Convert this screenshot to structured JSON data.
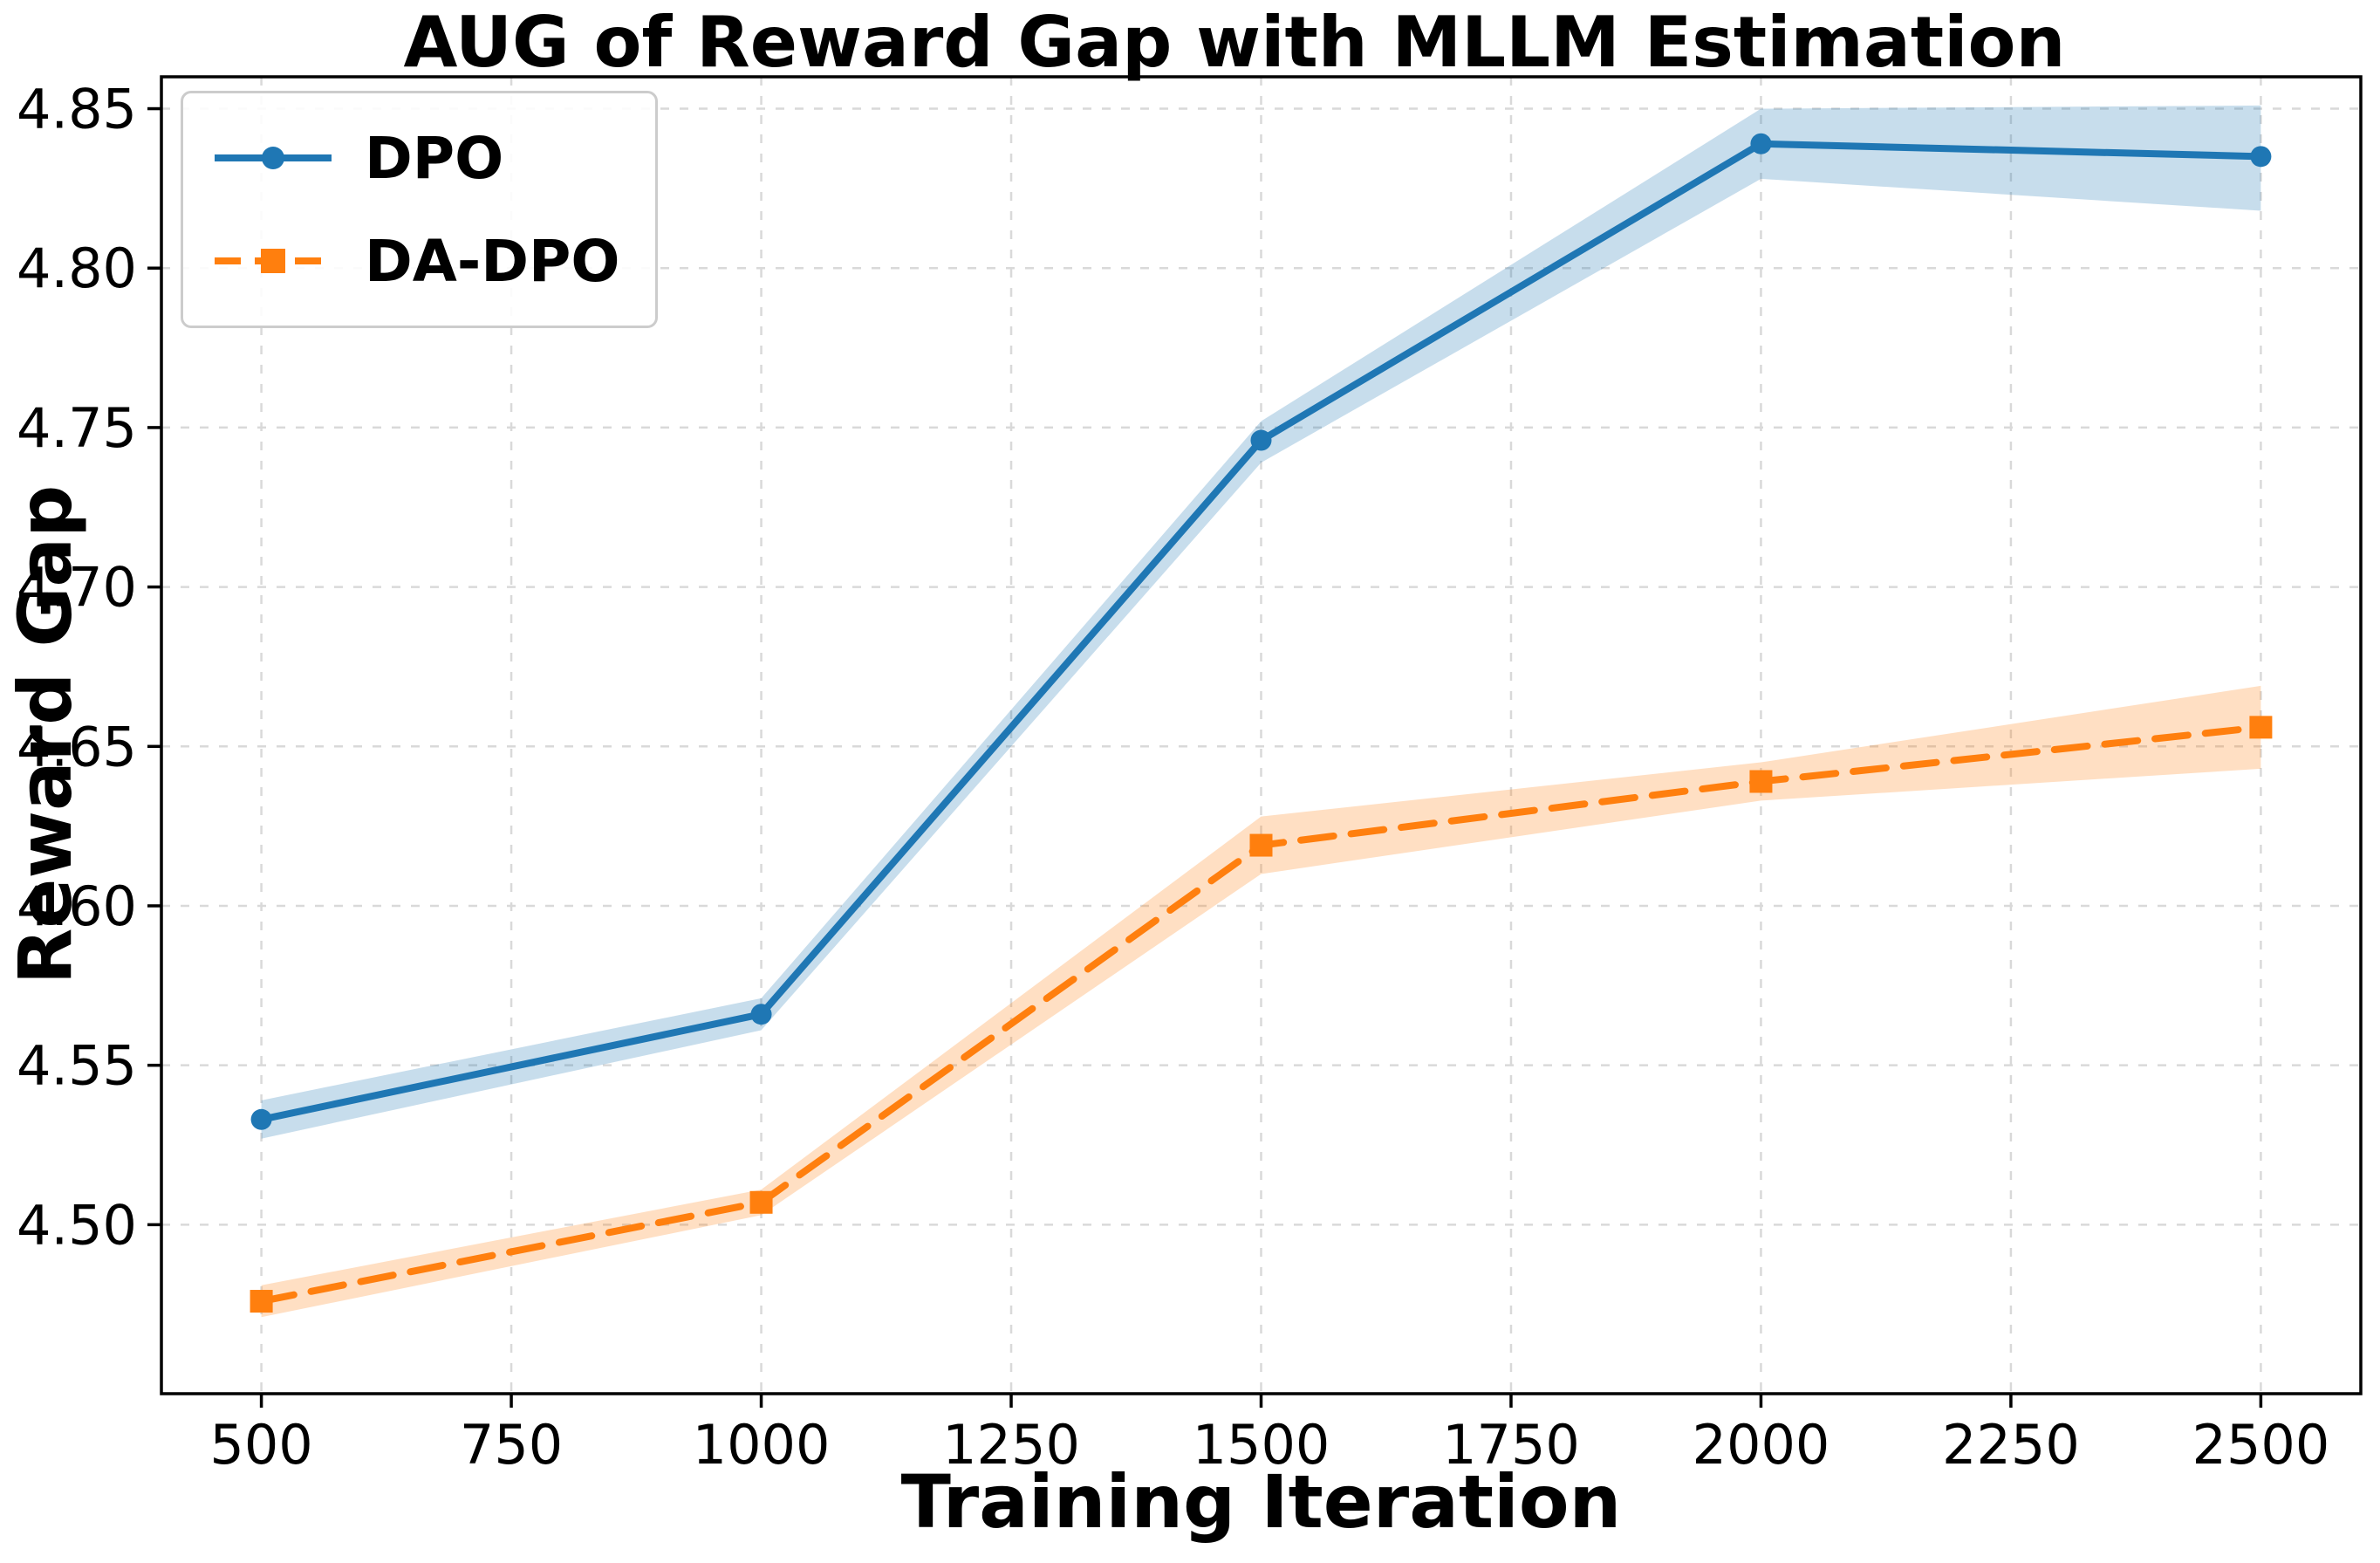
{
  "chart_data": {
    "type": "line",
    "title": "AUG of Reward Gap with MLLM Estimation",
    "xlabel": "Training Iteration",
    "ylabel": "Reward Gap",
    "x": [
      500,
      1000,
      1500,
      2000,
      2500
    ],
    "series": [
      {
        "name": "DPO",
        "color": "#1f77b4",
        "linestyle": "solid",
        "marker": "circle",
        "values": [
          4.533,
          4.566,
          4.746,
          4.839,
          4.835
        ],
        "band_lower": [
          4.527,
          4.561,
          4.739,
          4.828,
          4.818
        ],
        "band_upper": [
          4.539,
          4.571,
          4.752,
          4.85,
          4.851
        ]
      },
      {
        "name": "DA-DPO",
        "color": "#ff7f0e",
        "linestyle": "dashed",
        "marker": "square",
        "values": [
          4.476,
          4.507,
          4.619,
          4.639,
          4.656
        ],
        "band_lower": [
          4.471,
          4.503,
          4.61,
          4.633,
          4.643
        ],
        "band_upper": [
          4.481,
          4.511,
          4.628,
          4.645,
          4.669
        ]
      }
    ],
    "xticks": [
      500,
      750,
      1000,
      1250,
      1500,
      1750,
      2000,
      2250,
      2500
    ],
    "xtick_labels": [
      "500",
      "750",
      "1000",
      "1250",
      "1500",
      "1750",
      "2000",
      "2250",
      "2500"
    ],
    "yticks": [
      4.5,
      4.55,
      4.6,
      4.65,
      4.7,
      4.75,
      4.8,
      4.85
    ],
    "ytick_labels": [
      "4.50",
      "4.55",
      "4.60",
      "4.65",
      "4.70",
      "4.75",
      "4.80",
      "4.85"
    ],
    "xlim": [
      400,
      2600
    ],
    "ylim": [
      4.447,
      4.86
    ],
    "grid": true,
    "band_opacity": 0.25,
    "legend": {
      "position": "upper-left",
      "entries": [
        "DPO",
        "DA-DPO"
      ]
    }
  }
}
